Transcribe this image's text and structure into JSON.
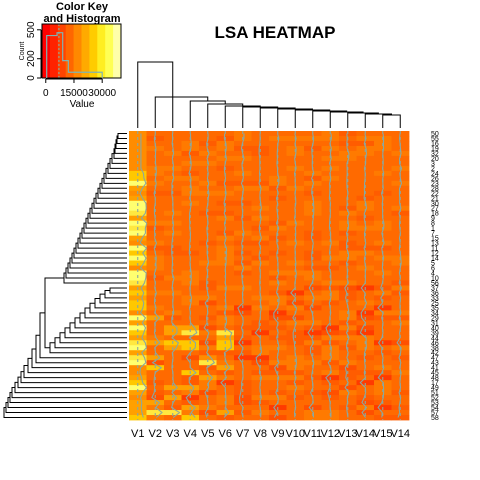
{
  "chart_data": {
    "type": "heatmap",
    "title": "LSA HEATMAP",
    "color_key": {
      "title_line1": "Color Key",
      "title_line2": "and Histogram",
      "x_label": "Value",
      "y_label": "Count",
      "x_ticks": [
        0,
        15000,
        30000
      ],
      "x_tick_labels": [
        "0",
        "15000",
        "30000"
      ],
      "x_range": [
        -2000,
        40000
      ],
      "y_ticks": [
        0,
        200,
        500
      ],
      "y_tick_labels": [
        "0",
        "200",
        "500"
      ],
      "y_range": [
        0,
        560
      ],
      "colors": [
        "#ff0000",
        "#ff2200",
        "#ff4400",
        "#ff6600",
        "#ff8800",
        "#ffaa00",
        "#ffcc00",
        "#ffee22",
        "#ffff55",
        "#ffffaa"
      ],
      "histogram_line_color": "#7fb3b3"
    },
    "columns": [
      "V1",
      "V2",
      "V3",
      "V4",
      "V5",
      "V6",
      "V7",
      "V8",
      "V9",
      "V10",
      "V11",
      "V12",
      "V13",
      "V14",
      "V15",
      "V14"
    ],
    "row_labels": [
      "50",
      "55",
      "16",
      "19",
      "32",
      "20",
      "3",
      "2",
      "24",
      "26",
      "23",
      "28",
      "22",
      "21",
      "30",
      "27",
      "18",
      "9",
      "8",
      "1",
      "7",
      "15",
      "13",
      "11",
      "12",
      "14",
      "5",
      "6",
      "4",
      "10",
      "56",
      "37",
      "36",
      "33",
      "25",
      "35",
      "34",
      "29",
      "31",
      "40",
      "39",
      "44",
      "46",
      "38",
      "42",
      "47",
      "43",
      "41",
      "45",
      "48",
      "17",
      "49",
      "51",
      "52",
      "53",
      "54",
      "57",
      "58"
    ],
    "trace_color": "#8aa8a0"
  }
}
